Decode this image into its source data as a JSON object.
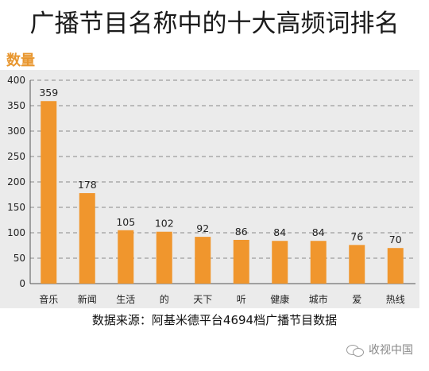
{
  "title": "广播节目名称中的十大高频词排名",
  "source_note": "数据来源：阿基米德平台4694档广播节目数据",
  "watermark": "收视中国",
  "chart_data": {
    "type": "bar",
    "title": "广播节目名称中的十大高频词排名",
    "ylabel": "数量",
    "xlabel": "",
    "categories": [
      "音乐",
      "新闻",
      "生活",
      "的",
      "天下",
      "听",
      "健康",
      "城市",
      "爱",
      "热线"
    ],
    "values": [
      359,
      178,
      105,
      102,
      92,
      86,
      84,
      84,
      76,
      70
    ],
    "ylim": [
      0,
      400
    ],
    "yticks": [
      0,
      50,
      100,
      150,
      200,
      250,
      300,
      350,
      400
    ],
    "grid": true,
    "bar_color": "#f0962d",
    "background_color": "#ebebeb",
    "title_color": "#1a1a1a",
    "ylabel_color": "#e8962e"
  }
}
